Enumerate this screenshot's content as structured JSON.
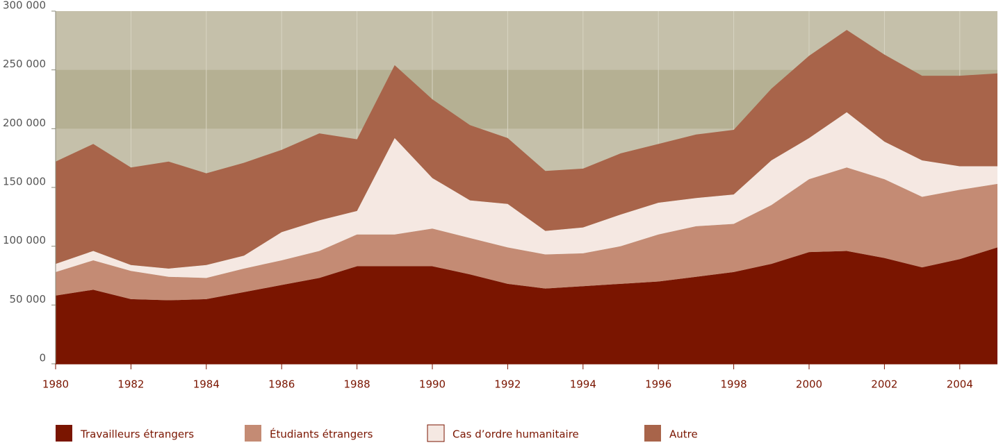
{
  "chart_data": {
    "type": "stacked_area",
    "x": [
      1980,
      1981,
      1982,
      1983,
      1984,
      1985,
      1986,
      1987,
      1988,
      1989,
      1990,
      1991,
      1992,
      1993,
      1994,
      1995,
      1996,
      1997,
      1998,
      1999,
      2000,
      2001,
      2002,
      2003,
      2004,
      2005
    ],
    "xlim": [
      1980,
      2005
    ],
    "xticks": [
      1980,
      1982,
      1984,
      1986,
      1988,
      1990,
      1992,
      1994,
      1996,
      1998,
      2000,
      2002,
      2004
    ],
    "ylim": [
      0,
      300000
    ],
    "yticks": [
      0,
      {
        "value": 50000,
        "label": "50 000"
      },
      {
        "value": 100000,
        "label": "100 000"
      },
      {
        "value": 150000,
        "label": "150 000"
      },
      {
        "value": 200000,
        "label": "200 000"
      },
      {
        "value": 250000,
        "label": "250 000"
      },
      {
        "value": 300000,
        "label": "300 000"
      }
    ],
    "highlight_band": [
      200000,
      250000
    ],
    "series": [
      {
        "name": "Travailleurs étrangers",
        "color": "#7a1500",
        "values": [
          58000,
          63000,
          55000,
          54000,
          55000,
          61000,
          67000,
          73000,
          83000,
          83000,
          83000,
          76000,
          68000,
          64000,
          66000,
          68000,
          70000,
          74000,
          78000,
          85000,
          95000,
          96000,
          90000,
          82000,
          89000,
          99000
        ]
      },
      {
        "name": "Étudiants étrangers",
        "color": "#c48b74",
        "values": [
          20000,
          25000,
          24000,
          20000,
          18000,
          20000,
          21000,
          23000,
          27000,
          27000,
          32000,
          31000,
          31000,
          29000,
          28000,
          32000,
          40000,
          43000,
          41000,
          50000,
          62000,
          71000,
          67000,
          60000,
          59000,
          54000
        ]
      },
      {
        "name": "Cas d’ordre humanitaire",
        "color": "#f5e8e2",
        "values": [
          7000,
          8000,
          5000,
          7000,
          11000,
          11000,
          24000,
          26000,
          20000,
          82000,
          43000,
          32000,
          37000,
          20000,
          22000,
          27000,
          27000,
          24000,
          25000,
          38000,
          35000,
          47000,
          32000,
          31000,
          20000,
          15000
        ]
      },
      {
        "name": "Autre",
        "color": "#a8644a",
        "values": [
          87000,
          91000,
          83000,
          91000,
          78000,
          79000,
          70000,
          74000,
          61000,
          62000,
          67000,
          64000,
          56000,
          51000,
          50000,
          52000,
          50000,
          54000,
          55000,
          61000,
          70000,
          70000,
          74000,
          72000,
          77000,
          79000
        ]
      }
    ]
  }
}
